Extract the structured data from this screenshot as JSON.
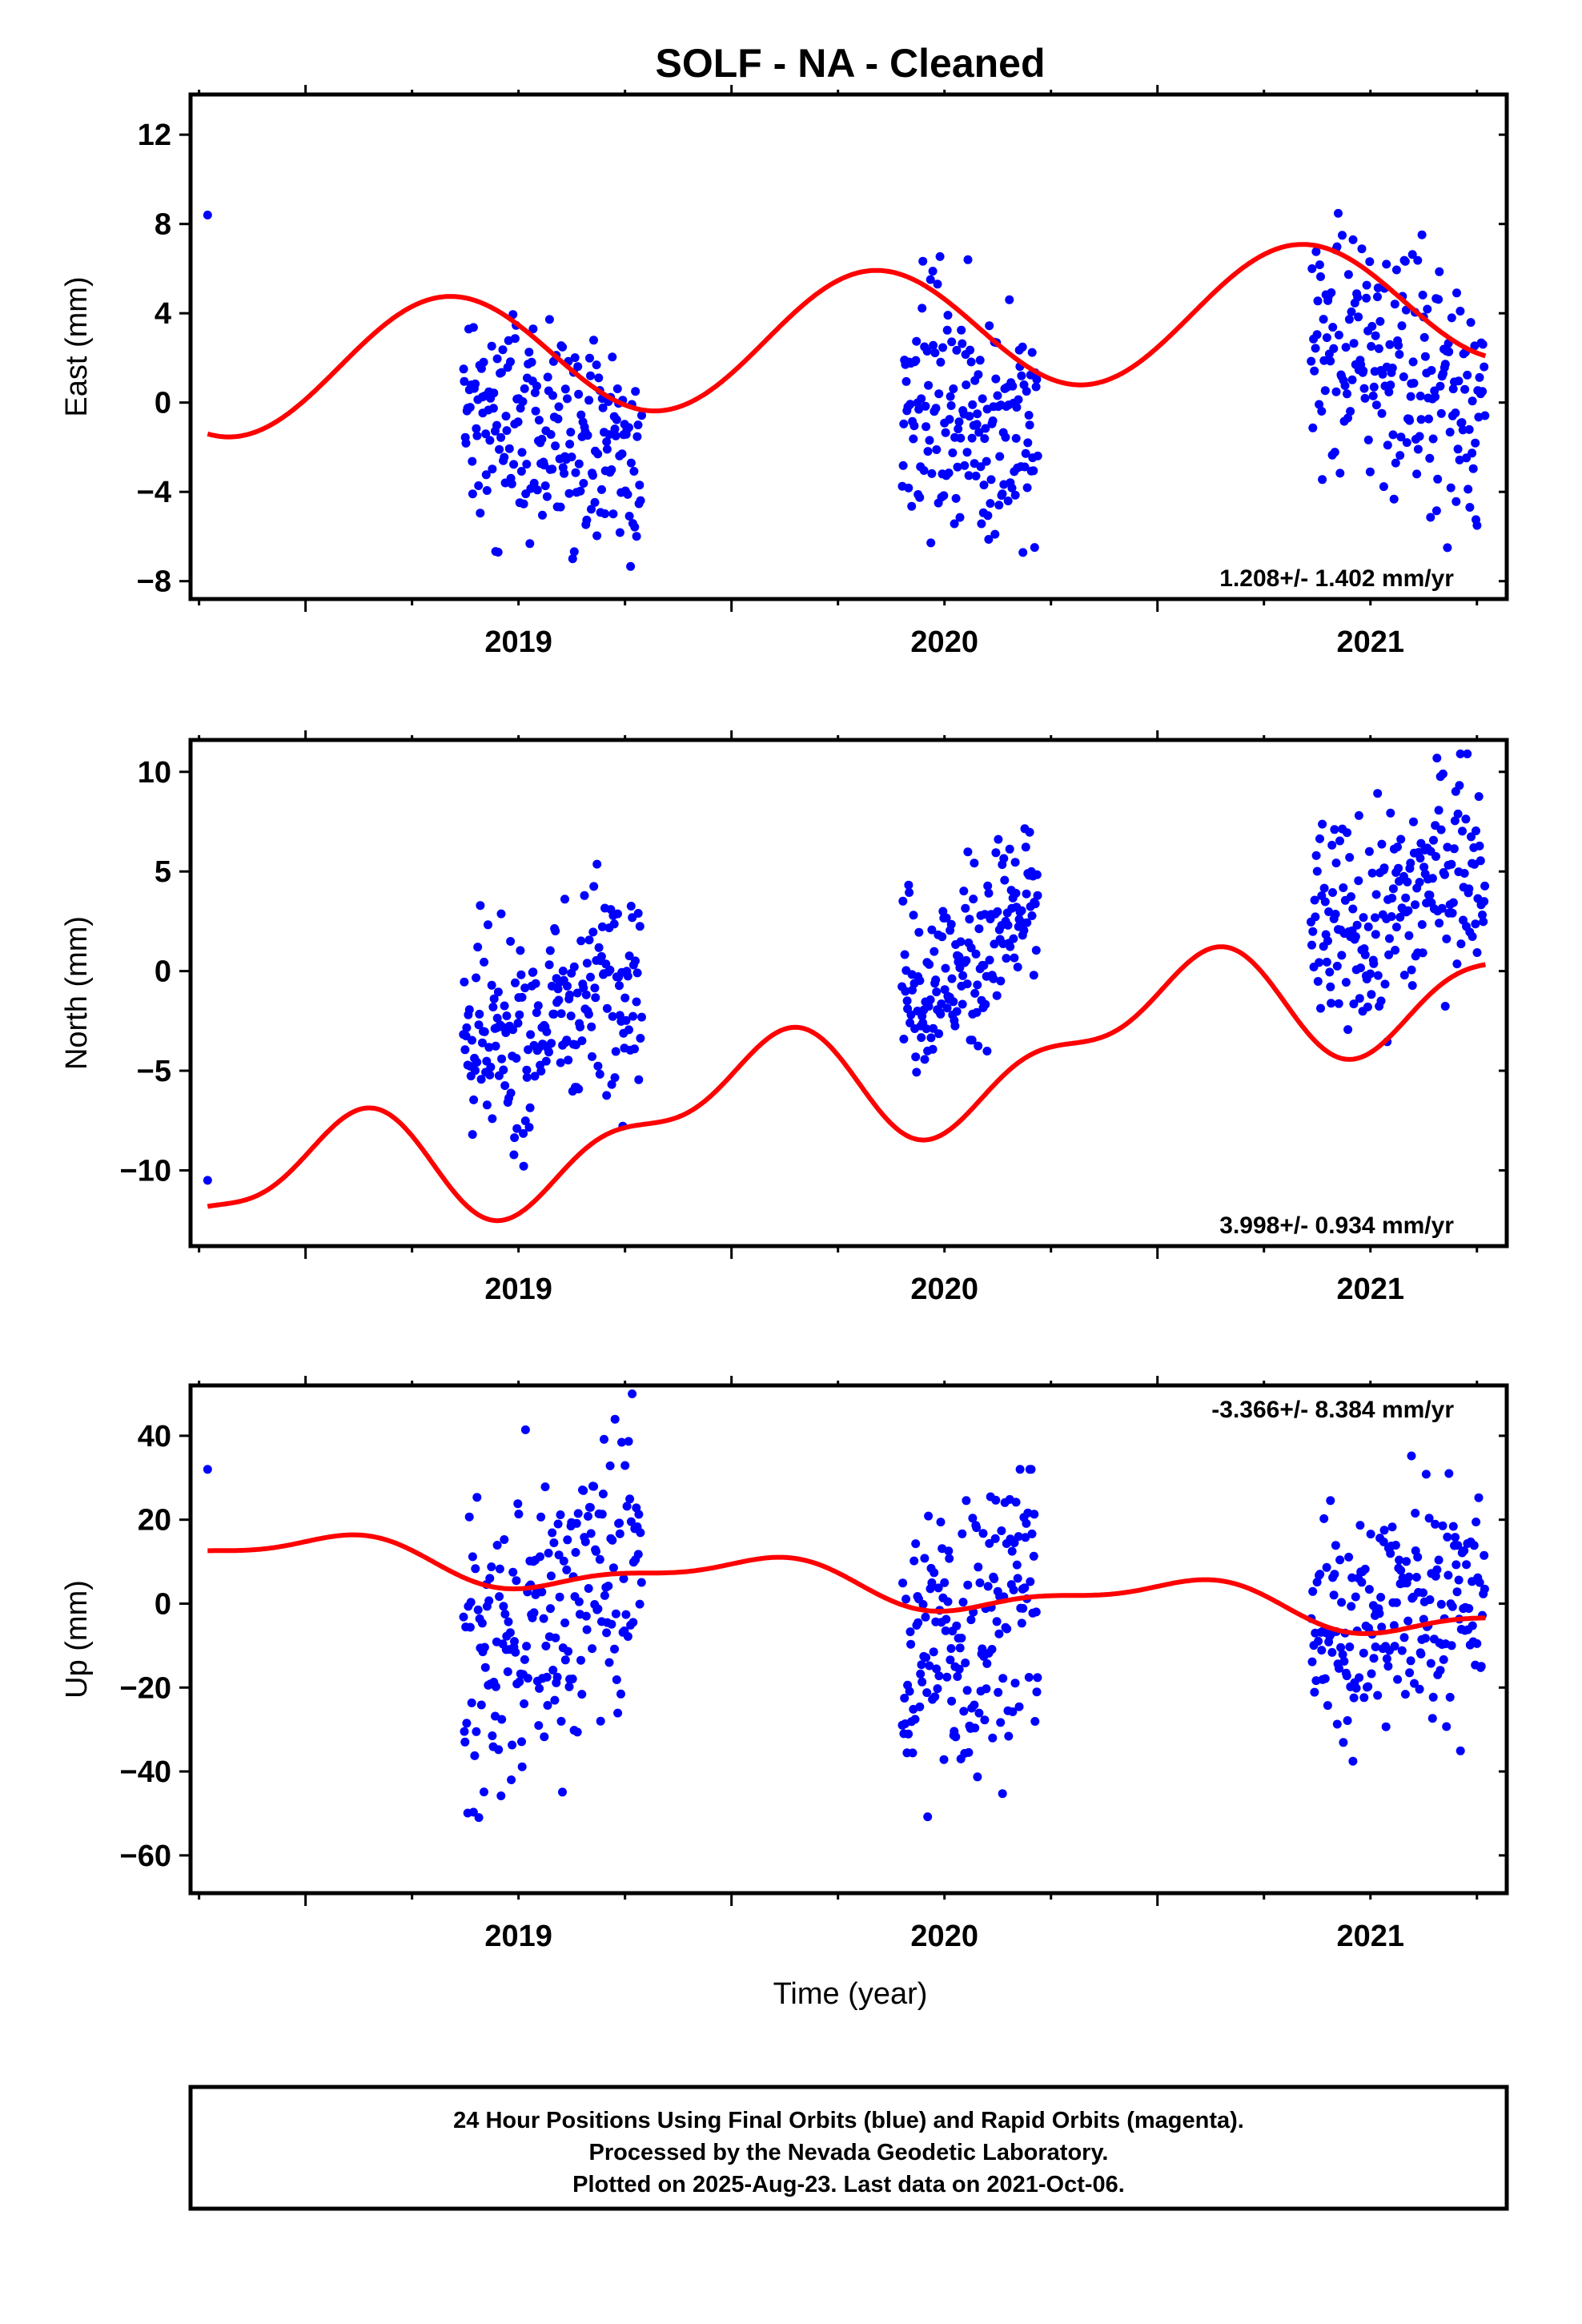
{
  "title": "SOLF  - NA - Cleaned",
  "footer": {
    "lines": [
      "24 Hour Positions Using Final Orbits (blue) and Rapid Orbits (magenta).",
      "Processed by the Nevada Geodetic Laboratory.",
      "Plotted on 2025-Aug-23. Last data on 2021-Oct-06."
    ]
  },
  "colors": {
    "points": "#0000ff",
    "model": "#ff0000",
    "frame": "#000000"
  },
  "chart_data": [
    {
      "type": "scatter",
      "ylabel": "East (mm)",
      "xlabel": "",
      "xlim": [
        2018.73,
        2021.82
      ],
      "ylim": [
        -8.8,
        13.8
      ],
      "yticks": [
        -8,
        -4,
        0,
        4,
        8,
        12
      ],
      "xticks": [
        "2019",
        "2020",
        "2021"
      ],
      "rate_label": "1.208+/- 1.402 mm/yr",
      "rate_position": "bottom-right",
      "model": {
        "start": 1.2,
        "end": 4.8,
        "amp1": 2.85,
        "phase1": 0.08,
        "amp2": 0.0,
        "phase2": 0.0
      },
      "clusters": [
        {
          "x0": 2018.77,
          "x1": 2018.77,
          "n": 1,
          "center": 8.4,
          "noise": 0.0,
          "follow": 0.0,
          "slope": 0.0,
          "min": -9,
          "max": 13.3
        },
        {
          "x0": 2019.37,
          "x1": 2019.79,
          "n": 210,
          "center": -1.2,
          "noise": 2.4,
          "follow": 0.55,
          "slope": 0.0,
          "min": -8.2,
          "max": 6.4
        },
        {
          "x0": 2020.4,
          "x1": 2020.72,
          "n": 170,
          "center": -0.5,
          "noise": 2.6,
          "follow": 0.55,
          "slope": 0.0,
          "min": -8.3,
          "max": 7.8
        },
        {
          "x0": 2021.36,
          "x1": 2021.77,
          "n": 200,
          "center": 1.5,
          "noise": 2.8,
          "follow": 0.55,
          "slope": 0.0,
          "min": -6.5,
          "max": 13.2
        }
      ]
    },
    {
      "type": "scatter",
      "ylabel": "North (mm)",
      "xlabel": "",
      "xlim": [
        2018.73,
        2021.82
      ],
      "ylim": [
        -13.8,
        11.6
      ],
      "yticks": [
        -10,
        -5,
        0,
        5,
        10
      ],
      "xticks": [
        "2019",
        "2020",
        "2021"
      ],
      "rate_label": "3.998+/- 0.934 mm/yr",
      "rate_position": "bottom-right",
      "model": {
        "start": -12.0,
        "end": 0.5,
        "amp1": 2.6,
        "phase1": 0.8,
        "amp2": 1.4,
        "phase2": 0.55
      },
      "clusters": [
        {
          "x0": 2018.77,
          "x1": 2018.77,
          "n": 1,
          "center": -10.5,
          "noise": 0.0,
          "follow": 0.0,
          "slope": 0.0,
          "min": -13.5,
          "max": 11
        },
        {
          "x0": 2019.37,
          "x1": 2019.79,
          "n": 210,
          "center": -2.3,
          "noise": 2.6,
          "follow": 0.9,
          "slope": 0.0,
          "min": -13.2,
          "max": 7.4
        },
        {
          "x0": 2020.4,
          "x1": 2020.72,
          "n": 170,
          "center": 0.6,
          "noise": 2.3,
          "follow": 0.9,
          "slope": 0.0,
          "min": -5.2,
          "max": 9.2
        },
        {
          "x0": 2021.36,
          "x1": 2021.77,
          "n": 200,
          "center": 3.2,
          "noise": 2.6,
          "follow": 0.9,
          "slope": 0.0,
          "min": -6.9,
          "max": 10.9
        }
      ]
    },
    {
      "type": "scatter",
      "ylabel": "Up (mm)",
      "xlabel": "Time (year)",
      "xlim": [
        2018.73,
        2021.82
      ],
      "ylim": [
        -69,
        52
      ],
      "yticks": [
        -60,
        -40,
        -20,
        0,
        20,
        40
      ],
      "xticks": [
        "2019",
        "2020",
        "2021"
      ],
      "rate_label": "-3.366+/- 8.384 mm/yr",
      "rate_position": "top-right",
      "model": {
        "start": 13.0,
        "end": -3.5,
        "amp1": 4.5,
        "phase1": 0.8,
        "amp2": 1.8,
        "phase2": 0.55
      },
      "clusters": [
        {
          "x0": 2018.77,
          "x1": 2018.77,
          "n": 1,
          "center": 32.0,
          "noise": 0.0,
          "follow": 0.0,
          "slope": 0.0,
          "min": -70,
          "max": 52
        },
        {
          "x0": 2019.37,
          "x1": 2019.79,
          "n": 210,
          "center": -2.0,
          "noise": 17.0,
          "follow": 0.5,
          "slope": 30.0,
          "min": -67,
          "max": 50
        },
        {
          "x0": 2020.4,
          "x1": 2020.72,
          "n": 170,
          "center": -6.0,
          "noise": 18.0,
          "follow": 0.5,
          "slope": 20.0,
          "min": -57,
          "max": 32
        },
        {
          "x0": 2021.36,
          "x1": 2021.77,
          "n": 200,
          "center": -1.5,
          "noise": 14.0,
          "follow": 0.5,
          "slope": 12.0,
          "min": -60,
          "max": 38
        }
      ]
    }
  ]
}
